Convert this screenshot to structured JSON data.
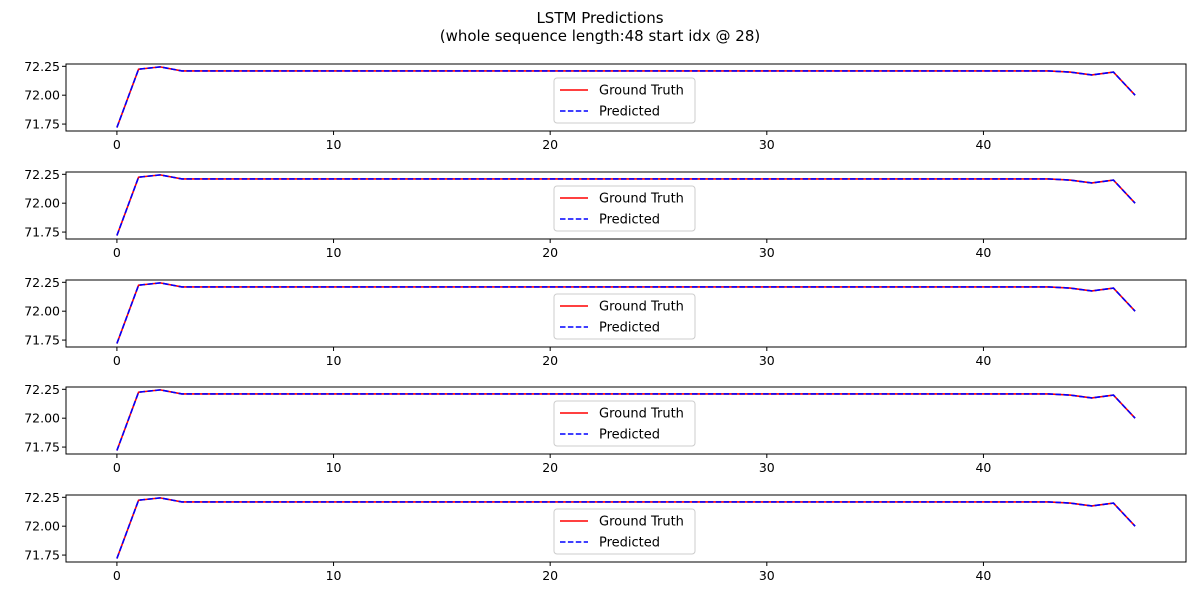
{
  "figure": {
    "title": "LSTM Predictions",
    "subtitle": "(whole sequence length:48 start idx @ 28)"
  },
  "colors": {
    "ground_truth": "#ff0000",
    "predicted": "#0000ff",
    "axes": "#000000",
    "legend_border": "#cccccc"
  },
  "chart_data": [
    {
      "type": "line",
      "xlim": [
        -2.35,
        49.35
      ],
      "ylim": [
        71.69,
        72.27
      ],
      "xticks": [
        0,
        10,
        20,
        30,
        40
      ],
      "yticks": [
        71.75,
        72.0,
        72.25
      ],
      "ytick_labels": [
        "71.75",
        "72.00",
        "72.25"
      ],
      "legend_position": "lower-center",
      "grid": false,
      "x": [
        0,
        1,
        2,
        3,
        4,
        5,
        6,
        7,
        8,
        9,
        10,
        11,
        12,
        13,
        14,
        15,
        16,
        17,
        18,
        19,
        20,
        21,
        22,
        23,
        24,
        25,
        26,
        27,
        28,
        29,
        30,
        31,
        32,
        33,
        34,
        35,
        36,
        37,
        38,
        39,
        40,
        41,
        42,
        43,
        44,
        45,
        46,
        47
      ],
      "series": [
        {
          "name": "Ground Truth",
          "style": "solid",
          "values": [
            71.72,
            72.225,
            72.245,
            72.21,
            72.21,
            72.21,
            72.21,
            72.21,
            72.21,
            72.21,
            72.21,
            72.21,
            72.21,
            72.21,
            72.21,
            72.21,
            72.21,
            72.21,
            72.21,
            72.21,
            72.21,
            72.21,
            72.21,
            72.21,
            72.21,
            72.21,
            72.21,
            72.21,
            72.21,
            72.21,
            72.21,
            72.21,
            72.21,
            72.21,
            72.21,
            72.21,
            72.21,
            72.21,
            72.21,
            72.21,
            72.21,
            72.21,
            72.21,
            72.21,
            72.2,
            72.175,
            72.2,
            72.0
          ]
        },
        {
          "name": "Predicted",
          "style": "dashed",
          "values": [
            71.72,
            72.225,
            72.245,
            72.21,
            72.21,
            72.21,
            72.21,
            72.21,
            72.21,
            72.21,
            72.21,
            72.21,
            72.21,
            72.21,
            72.21,
            72.21,
            72.21,
            72.21,
            72.21,
            72.21,
            72.21,
            72.21,
            72.21,
            72.21,
            72.21,
            72.21,
            72.21,
            72.21,
            72.21,
            72.21,
            72.21,
            72.21,
            72.21,
            72.21,
            72.21,
            72.21,
            72.21,
            72.21,
            72.21,
            72.21,
            72.21,
            72.21,
            72.21,
            72.21,
            72.2,
            72.175,
            72.2,
            72.0
          ]
        }
      ]
    },
    {
      "type": "line",
      "xlim": [
        -2.35,
        49.35
      ],
      "ylim": [
        71.69,
        72.27
      ],
      "xticks": [
        0,
        10,
        20,
        30,
        40
      ],
      "yticks": [
        71.75,
        72.0,
        72.25
      ],
      "ytick_labels": [
        "71.75",
        "72.00",
        "72.25"
      ],
      "legend_position": "lower-center",
      "grid": false,
      "x": [
        0,
        1,
        2,
        3,
        4,
        5,
        6,
        7,
        8,
        9,
        10,
        11,
        12,
        13,
        14,
        15,
        16,
        17,
        18,
        19,
        20,
        21,
        22,
        23,
        24,
        25,
        26,
        27,
        28,
        29,
        30,
        31,
        32,
        33,
        34,
        35,
        36,
        37,
        38,
        39,
        40,
        41,
        42,
        43,
        44,
        45,
        46,
        47
      ],
      "series": [
        {
          "name": "Ground Truth",
          "style": "solid",
          "values": [
            71.72,
            72.225,
            72.245,
            72.21,
            72.21,
            72.21,
            72.21,
            72.21,
            72.21,
            72.21,
            72.21,
            72.21,
            72.21,
            72.21,
            72.21,
            72.21,
            72.21,
            72.21,
            72.21,
            72.21,
            72.21,
            72.21,
            72.21,
            72.21,
            72.21,
            72.21,
            72.21,
            72.21,
            72.21,
            72.21,
            72.21,
            72.21,
            72.21,
            72.21,
            72.21,
            72.21,
            72.21,
            72.21,
            72.21,
            72.21,
            72.21,
            72.21,
            72.21,
            72.21,
            72.2,
            72.175,
            72.2,
            72.0
          ]
        },
        {
          "name": "Predicted",
          "style": "dashed",
          "values": [
            71.72,
            72.225,
            72.245,
            72.21,
            72.21,
            72.21,
            72.21,
            72.21,
            72.21,
            72.21,
            72.21,
            72.21,
            72.21,
            72.21,
            72.21,
            72.21,
            72.21,
            72.21,
            72.21,
            72.21,
            72.21,
            72.21,
            72.21,
            72.21,
            72.21,
            72.21,
            72.21,
            72.21,
            72.21,
            72.21,
            72.21,
            72.21,
            72.21,
            72.21,
            72.21,
            72.21,
            72.21,
            72.21,
            72.21,
            72.21,
            72.21,
            72.21,
            72.21,
            72.21,
            72.2,
            72.175,
            72.2,
            72.0
          ]
        }
      ]
    },
    {
      "type": "line",
      "xlim": [
        -2.35,
        49.35
      ],
      "ylim": [
        71.69,
        72.27
      ],
      "xticks": [
        0,
        10,
        20,
        30,
        40
      ],
      "yticks": [
        71.75,
        72.0,
        72.25
      ],
      "ytick_labels": [
        "71.75",
        "72.00",
        "72.25"
      ],
      "legend_position": "lower-center",
      "grid": false,
      "x": [
        0,
        1,
        2,
        3,
        4,
        5,
        6,
        7,
        8,
        9,
        10,
        11,
        12,
        13,
        14,
        15,
        16,
        17,
        18,
        19,
        20,
        21,
        22,
        23,
        24,
        25,
        26,
        27,
        28,
        29,
        30,
        31,
        32,
        33,
        34,
        35,
        36,
        37,
        38,
        39,
        40,
        41,
        42,
        43,
        44,
        45,
        46,
        47
      ],
      "series": [
        {
          "name": "Ground Truth",
          "style": "solid",
          "values": [
            71.72,
            72.225,
            72.245,
            72.21,
            72.21,
            72.21,
            72.21,
            72.21,
            72.21,
            72.21,
            72.21,
            72.21,
            72.21,
            72.21,
            72.21,
            72.21,
            72.21,
            72.21,
            72.21,
            72.21,
            72.21,
            72.21,
            72.21,
            72.21,
            72.21,
            72.21,
            72.21,
            72.21,
            72.21,
            72.21,
            72.21,
            72.21,
            72.21,
            72.21,
            72.21,
            72.21,
            72.21,
            72.21,
            72.21,
            72.21,
            72.21,
            72.21,
            72.21,
            72.21,
            72.2,
            72.175,
            72.2,
            72.0
          ]
        },
        {
          "name": "Predicted",
          "style": "dashed",
          "values": [
            71.72,
            72.225,
            72.245,
            72.21,
            72.21,
            72.21,
            72.21,
            72.21,
            72.21,
            72.21,
            72.21,
            72.21,
            72.21,
            72.21,
            72.21,
            72.21,
            72.21,
            72.21,
            72.21,
            72.21,
            72.21,
            72.21,
            72.21,
            72.21,
            72.21,
            72.21,
            72.21,
            72.21,
            72.21,
            72.21,
            72.21,
            72.21,
            72.21,
            72.21,
            72.21,
            72.21,
            72.21,
            72.21,
            72.21,
            72.21,
            72.21,
            72.21,
            72.21,
            72.21,
            72.2,
            72.175,
            72.2,
            72.0
          ]
        }
      ]
    },
    {
      "type": "line",
      "xlim": [
        -2.35,
        49.35
      ],
      "ylim": [
        71.69,
        72.27
      ],
      "xticks": [
        0,
        10,
        20,
        30,
        40
      ],
      "yticks": [
        71.75,
        72.0,
        72.25
      ],
      "ytick_labels": [
        "71.75",
        "72.00",
        "72.25"
      ],
      "legend_position": "lower-center",
      "grid": false,
      "x": [
        0,
        1,
        2,
        3,
        4,
        5,
        6,
        7,
        8,
        9,
        10,
        11,
        12,
        13,
        14,
        15,
        16,
        17,
        18,
        19,
        20,
        21,
        22,
        23,
        24,
        25,
        26,
        27,
        28,
        29,
        30,
        31,
        32,
        33,
        34,
        35,
        36,
        37,
        38,
        39,
        40,
        41,
        42,
        43,
        44,
        45,
        46,
        47
      ],
      "series": [
        {
          "name": "Ground Truth",
          "style": "solid",
          "values": [
            71.72,
            72.225,
            72.245,
            72.21,
            72.21,
            72.21,
            72.21,
            72.21,
            72.21,
            72.21,
            72.21,
            72.21,
            72.21,
            72.21,
            72.21,
            72.21,
            72.21,
            72.21,
            72.21,
            72.21,
            72.21,
            72.21,
            72.21,
            72.21,
            72.21,
            72.21,
            72.21,
            72.21,
            72.21,
            72.21,
            72.21,
            72.21,
            72.21,
            72.21,
            72.21,
            72.21,
            72.21,
            72.21,
            72.21,
            72.21,
            72.21,
            72.21,
            72.21,
            72.21,
            72.2,
            72.175,
            72.2,
            72.0
          ]
        },
        {
          "name": "Predicted",
          "style": "dashed",
          "values": [
            71.72,
            72.225,
            72.245,
            72.21,
            72.21,
            72.21,
            72.21,
            72.21,
            72.21,
            72.21,
            72.21,
            72.21,
            72.21,
            72.21,
            72.21,
            72.21,
            72.21,
            72.21,
            72.21,
            72.21,
            72.21,
            72.21,
            72.21,
            72.21,
            72.21,
            72.21,
            72.21,
            72.21,
            72.21,
            72.21,
            72.21,
            72.21,
            72.21,
            72.21,
            72.21,
            72.21,
            72.21,
            72.21,
            72.21,
            72.21,
            72.21,
            72.21,
            72.21,
            72.21,
            72.2,
            72.175,
            72.2,
            72.0
          ]
        }
      ]
    },
    {
      "type": "line",
      "xlim": [
        -2.35,
        49.35
      ],
      "ylim": [
        71.69,
        72.27
      ],
      "xticks": [
        0,
        10,
        20,
        30,
        40
      ],
      "yticks": [
        71.75,
        72.0,
        72.25
      ],
      "ytick_labels": [
        "71.75",
        "72.00",
        "72.25"
      ],
      "legend_position": "lower-center",
      "grid": false,
      "x": [
        0,
        1,
        2,
        3,
        4,
        5,
        6,
        7,
        8,
        9,
        10,
        11,
        12,
        13,
        14,
        15,
        16,
        17,
        18,
        19,
        20,
        21,
        22,
        23,
        24,
        25,
        26,
        27,
        28,
        29,
        30,
        31,
        32,
        33,
        34,
        35,
        36,
        37,
        38,
        39,
        40,
        41,
        42,
        43,
        44,
        45,
        46,
        47
      ],
      "series": [
        {
          "name": "Ground Truth",
          "style": "solid",
          "values": [
            71.72,
            72.225,
            72.245,
            72.21,
            72.21,
            72.21,
            72.21,
            72.21,
            72.21,
            72.21,
            72.21,
            72.21,
            72.21,
            72.21,
            72.21,
            72.21,
            72.21,
            72.21,
            72.21,
            72.21,
            72.21,
            72.21,
            72.21,
            72.21,
            72.21,
            72.21,
            72.21,
            72.21,
            72.21,
            72.21,
            72.21,
            72.21,
            72.21,
            72.21,
            72.21,
            72.21,
            72.21,
            72.21,
            72.21,
            72.21,
            72.21,
            72.21,
            72.21,
            72.21,
            72.2,
            72.175,
            72.2,
            72.0
          ]
        },
        {
          "name": "Predicted",
          "style": "dashed",
          "values": [
            71.72,
            72.225,
            72.245,
            72.21,
            72.21,
            72.21,
            72.21,
            72.21,
            72.21,
            72.21,
            72.21,
            72.21,
            72.21,
            72.21,
            72.21,
            72.21,
            72.21,
            72.21,
            72.21,
            72.21,
            72.21,
            72.21,
            72.21,
            72.21,
            72.21,
            72.21,
            72.21,
            72.21,
            72.21,
            72.21,
            72.21,
            72.21,
            72.21,
            72.21,
            72.21,
            72.21,
            72.21,
            72.21,
            72.21,
            72.21,
            72.21,
            72.21,
            72.21,
            72.21,
            72.2,
            72.175,
            72.2,
            72.0
          ]
        }
      ]
    }
  ]
}
